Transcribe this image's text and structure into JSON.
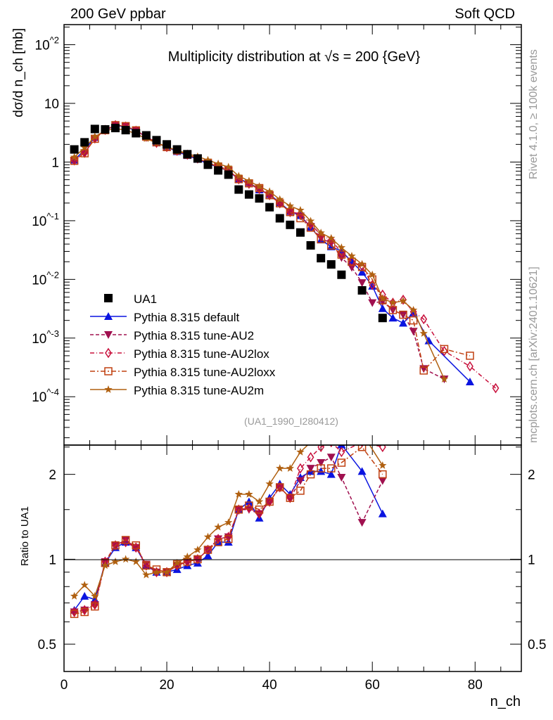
{
  "header": {
    "left": "200 GeV ppbar",
    "right": "Soft QCD"
  },
  "side_text": {
    "rivet": "Rivet 4.1.0, ≥ 100k events",
    "mcplots": "mcplots.cern.ch [arXiv:2401.10621]"
  },
  "chart_data": {
    "type": "scatter",
    "title": "Multiplicity distribution at √s = 200 {GeV}",
    "reference_label": "(UA1_1990_I280412)",
    "xlabel": "n_ch",
    "ylabel": "dσ/d n_ch [mb]",
    "ratio_ylabel": "Ratio to UA1",
    "xlim": [
      0,
      89
    ],
    "ylim": [
      1.5e-05,
      220
    ],
    "ratio_ylim": [
      0.4,
      2.54
    ],
    "x_ticks": [
      "0",
      "20",
      "40",
      "60",
      "80"
    ],
    "x_tick_values": [
      0,
      20,
      40,
      60,
      80
    ],
    "y_ticks": [
      "10^2",
      "10",
      "1",
      "10^-1",
      "10^-2",
      "10^-3",
      "10^-4"
    ],
    "y_tick_values": [
      100,
      10,
      1,
      0.1,
      0.01,
      0.001,
      0.0001
    ],
    "ratio_ticks": [
      "2",
      "1",
      "0.5"
    ],
    "ratio_tick_values": [
      2,
      1,
      0.5
    ],
    "data": {
      "name": "UA1",
      "color": "#000000",
      "x": [
        2,
        4,
        6,
        8,
        10,
        12,
        14,
        16,
        18,
        20,
        22,
        24,
        26,
        28,
        30,
        32,
        34,
        36,
        38,
        40,
        42,
        44,
        46,
        48,
        50,
        52,
        54,
        58,
        62
      ],
      "y": [
        1.64,
        2.17,
        3.66,
        3.6,
        3.8,
        3.5,
        3.1,
        2.85,
        2.36,
        2.0,
        1.64,
        1.36,
        1.15,
        0.9,
        0.72,
        0.61,
        0.34,
        0.28,
        0.24,
        0.17,
        0.11,
        0.085,
        0.063,
        0.038,
        0.023,
        0.018,
        0.012,
        0.0065,
        0.0022
      ]
    },
    "series": [
      {
        "name": "Pythia 8.315 default",
        "color": "#0a14e0",
        "dash": "",
        "marker": "triangle-up",
        "ratio": [
          0.66,
          0.74,
          0.72,
          0.97,
          1.1,
          1.15,
          1.1,
          0.95,
          0.9,
          0.9,
          0.92,
          0.95,
          0.97,
          1.03,
          1.15,
          1.15,
          1.5,
          1.6,
          1.4,
          1.65,
          1.85,
          1.7,
          1.95,
          2.05,
          2.05,
          2.0,
          2.55,
          2.05,
          1.45
        ],
        "extra_x": [
          56,
          60,
          64,
          66,
          68,
          71,
          79
        ],
        "extra_y": [
          0.02,
          0.0077,
          0.0022,
          0.0018,
          0.0027,
          0.0009,
          0.00018
        ]
      },
      {
        "name": "Pythia 8.315 tune-AU2",
        "color": "#a0104f",
        "dash": "5,3",
        "marker": "triangle-down",
        "ratio": [
          0.65,
          0.66,
          0.69,
          0.98,
          1.12,
          1.17,
          1.1,
          0.96,
          0.9,
          0.9,
          0.95,
          0.98,
          1.0,
          1.08,
          1.18,
          1.2,
          1.5,
          1.5,
          1.45,
          1.6,
          1.8,
          1.65,
          1.9,
          2.1,
          2.2,
          2.3,
          1.95,
          1.35,
          1.9
        ],
        "extra_x": [
          56,
          60,
          64,
          66,
          68,
          70,
          74
        ],
        "extra_y": [
          0.016,
          0.004,
          0.003,
          0.0025,
          0.0013,
          0.0003,
          0.0002
        ]
      },
      {
        "name": "Pythia 8.315 tune-AU2lox",
        "color": "#c8103c",
        "dash": "6,3,1,3",
        "marker": "diamond",
        "ratio": [
          0.65,
          0.66,
          0.69,
          0.98,
          1.12,
          1.15,
          1.1,
          0.95,
          0.9,
          0.9,
          0.95,
          0.98,
          1.0,
          1.08,
          1.18,
          1.2,
          1.5,
          1.52,
          1.45,
          1.6,
          1.8,
          1.65,
          2.1,
          2.3,
          2.5,
          2.6,
          2.4,
          2.6,
          2.5
        ],
        "extra_x": [
          56,
          60,
          64,
          66,
          68,
          70,
          74,
          79,
          84
        ],
        "extra_y": [
          0.02,
          0.008,
          0.004,
          0.0045,
          0.0028,
          0.0021,
          0.0006,
          0.00033,
          0.00014
        ]
      },
      {
        "name": "Pythia 8.315 tune-AU2loxx",
        "color": "#c04010",
        "dash": "7,3,2,3",
        "marker": "square-open",
        "ratio": [
          0.64,
          0.65,
          0.68,
          0.97,
          1.12,
          1.17,
          1.12,
          0.95,
          0.92,
          0.9,
          0.96,
          0.98,
          1.0,
          1.08,
          1.15,
          1.18,
          1.5,
          1.55,
          1.5,
          1.6,
          1.8,
          1.65,
          1.75,
          2.0,
          2.1,
          2.1,
          2.2,
          2.5,
          2.0
        ],
        "extra_x": [
          56,
          60,
          64,
          66,
          68,
          70,
          74,
          79
        ],
        "extra_y": [
          0.02,
          0.01,
          0.003,
          0.0025,
          0.002,
          0.00028,
          0.00065,
          0.0005
        ]
      },
      {
        "name": "Pythia 8.315 tune-AU2m",
        "color": "#b06010",
        "dash": "",
        "marker": "star",
        "ratio": [
          0.74,
          0.81,
          0.74,
          0.95,
          0.98,
          1.0,
          0.98,
          0.88,
          0.9,
          0.9,
          0.97,
          1.02,
          1.08,
          1.2,
          1.3,
          1.35,
          1.7,
          1.7,
          1.6,
          1.85,
          2.1,
          2.1,
          2.4,
          2.6,
          2.7,
          2.8,
          2.9,
          2.8,
          2.15
        ],
        "extra_x": [
          56,
          60,
          64,
          66,
          68,
          70,
          74
        ],
        "extra_y": [
          0.025,
          0.012,
          0.004,
          0.0043,
          0.003,
          0.0012,
          0.0002
        ]
      }
    ],
    "grid": false,
    "legend_placement": "lower-left"
  }
}
